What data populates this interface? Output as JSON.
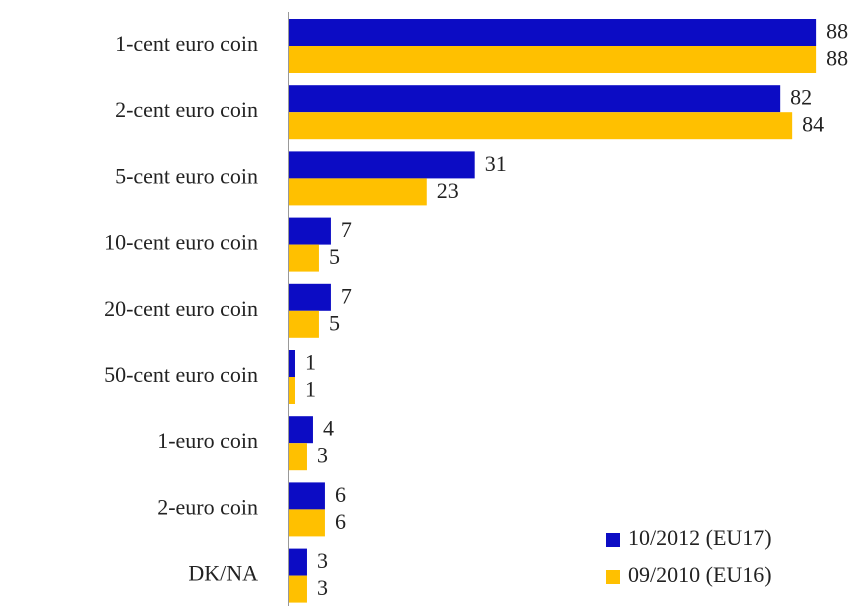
{
  "chart_data": {
    "type": "bar",
    "orientation": "horizontal",
    "categories": [
      "1-cent euro coin",
      "2-cent euro coin",
      "5-cent euro coin",
      "10-cent euro coin",
      "20-cent euro coin",
      "50-cent euro coin",
      "1-euro coin",
      "2-euro coin",
      "DK/NA"
    ],
    "series": [
      {
        "name": "10/2012 (EU17)",
        "color": "#0c0cc4",
        "values": [
          88,
          82,
          31,
          7,
          7,
          1,
          4,
          6,
          3
        ]
      },
      {
        "name": "09/2010 (EU16)",
        "color": "#ffc000",
        "values": [
          88,
          84,
          23,
          5,
          5,
          1,
          3,
          6,
          3
        ]
      }
    ],
    "legend": "lower right"
  }
}
